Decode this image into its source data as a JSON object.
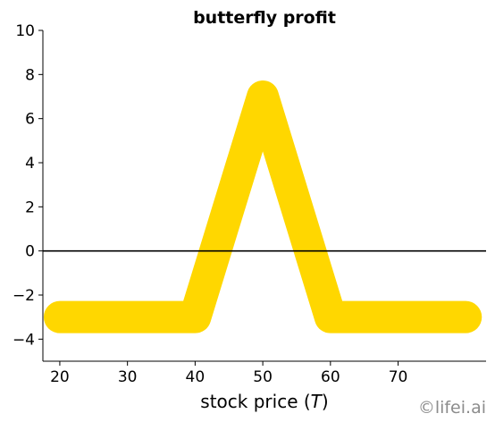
{
  "chart_data": {
    "type": "line",
    "title": "butterfly profit",
    "xlabel": "stock price (T)",
    "xlabel_parts": {
      "before": "stock price (",
      "italic": "T",
      "after": ")"
    },
    "ylabel": "",
    "xlim": [
      17.5,
      83
    ],
    "ylim": [
      -5,
      10
    ],
    "x_ticks": [
      20,
      30,
      40,
      50,
      60,
      70
    ],
    "y_ticks": [
      -4,
      -2,
      0,
      2,
      4,
      6,
      8,
      10
    ],
    "y_tick_labels": [
      "−4",
      "−2",
      "0",
      "2",
      "4",
      "6",
      "8",
      "10"
    ],
    "series": [
      {
        "x": [
          20,
          40,
          50,
          60,
          80
        ],
        "y": [
          -3,
          -3,
          7,
          -3,
          -3
        ],
        "color": "#FFD700"
      }
    ],
    "hline": {
      "y": 0,
      "color": "#000000"
    },
    "spines": [
      "left",
      "bottom"
    ],
    "grid": false
  },
  "watermark": "©lifei.ai"
}
